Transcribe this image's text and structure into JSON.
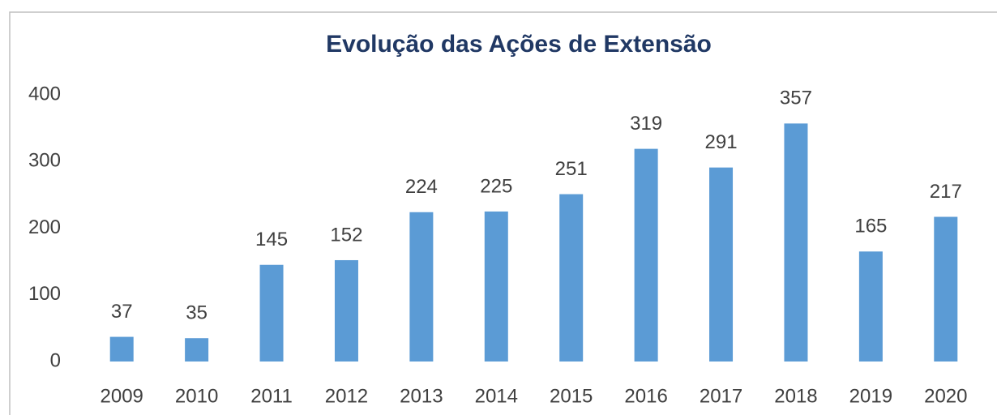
{
  "chart_data": {
    "type": "bar",
    "title": "Evolução das Ações de Extensão",
    "categories": [
      "2009",
      "2010",
      "2011",
      "2012",
      "2013",
      "2014",
      "2015",
      "2016",
      "2017",
      "2018",
      "2019",
      "2020"
    ],
    "values": [
      37,
      35,
      145,
      152,
      224,
      225,
      251,
      319,
      291,
      357,
      165,
      217
    ],
    "color": "#5b9bd5",
    "ylim": [
      0,
      400
    ],
    "yticks": [
      0,
      100,
      200,
      300,
      400
    ],
    "grid": false
  }
}
